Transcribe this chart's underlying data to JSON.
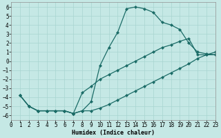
{
  "xlabel": "Humidex (Indice chaleur)",
  "bg_color": "#c5e8e5",
  "grid_color": "#a8d4d0",
  "line_color": "#1a6b66",
  "xlim": [
    0,
    23
  ],
  "ylim": [
    -6.5,
    6.5
  ],
  "xticks": [
    0,
    1,
    2,
    3,
    4,
    5,
    6,
    7,
    8,
    9,
    10,
    11,
    12,
    13,
    14,
    15,
    16,
    17,
    18,
    19,
    20,
    21,
    22,
    23
  ],
  "yticks": [
    -6,
    -5,
    -4,
    -3,
    -2,
    -1,
    0,
    1,
    2,
    3,
    4,
    5,
    6
  ],
  "curve1_x": [
    1,
    2,
    3,
    4,
    5,
    6,
    7,
    8,
    9,
    10,
    11,
    12,
    13,
    14,
    15,
    16,
    17,
    18,
    19,
    20,
    21,
    22,
    23
  ],
  "curve1_y": [
    -3.8,
    -5.0,
    -5.5,
    -5.5,
    -5.5,
    -5.5,
    -5.8,
    -5.5,
    -4.5,
    -0.5,
    1.5,
    3.2,
    5.8,
    6.0,
    5.8,
    5.4,
    4.3,
    4.0,
    3.5,
    2.0,
    1.0,
    0.8,
    0.7
  ],
  "curve2_x": [
    1,
    2,
    3,
    4,
    5,
    6,
    7,
    8,
    9,
    10,
    11,
    12,
    13,
    14,
    15,
    16,
    17,
    18,
    19,
    20,
    21,
    22,
    23
  ],
  "curve2_y": [
    -3.8,
    -5.0,
    -5.5,
    -5.5,
    -5.5,
    -5.5,
    -5.8,
    -3.5,
    -2.8,
    -2.0,
    -1.5,
    -1.0,
    -0.5,
    0.0,
    0.5,
    1.0,
    1.5,
    1.8,
    2.2,
    2.5,
    0.7,
    0.7,
    0.7
  ],
  "curve3_x": [
    1,
    2,
    3,
    4,
    5,
    6,
    7,
    8,
    9,
    10,
    11,
    12,
    13,
    14,
    15,
    16,
    17,
    18,
    19,
    20,
    21,
    22,
    23
  ],
  "curve3_y": [
    -3.8,
    -5.0,
    -5.5,
    -5.5,
    -5.5,
    -5.5,
    -5.8,
    -5.5,
    -5.5,
    -5.2,
    -4.8,
    -4.3,
    -3.8,
    -3.3,
    -2.8,
    -2.3,
    -1.8,
    -1.3,
    -0.8,
    -0.3,
    0.3,
    0.7,
    1.0
  ],
  "fontsize": 6,
  "linewidth": 0.9,
  "markersize": 2.2,
  "tick_fontsize": 5.5
}
